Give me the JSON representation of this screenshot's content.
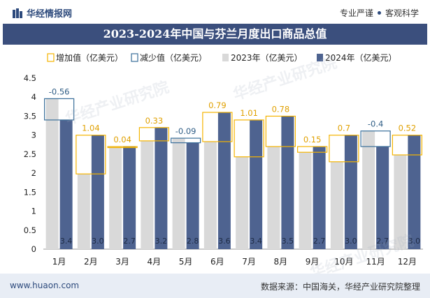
{
  "header": {
    "brand": "华经情报网",
    "slogan_left": "专业严谨",
    "slogan_right": "客观科学"
  },
  "footer": {
    "url": "www.huaon.com",
    "source": "数据来源：中国海关，华经产业研究院整理"
  },
  "watermarks": [
    "华经产业研究院",
    "华经产业研究院",
    "华经产业研究院"
  ],
  "colors": {
    "bar2023": "#d9d9d9",
    "bar2024": "#4e6390",
    "increase": "#f5b400",
    "decrease": "#3a6f9a",
    "header_bg": "#3b4f7d"
  },
  "chart_data": {
    "type": "bar",
    "title": "2023-2024年中国与芬兰月度出口商品总值",
    "categories": [
      "1月",
      "2月",
      "3月",
      "4月",
      "5月",
      "6月",
      "7月",
      "8月",
      "9月",
      "10月",
      "11月",
      "12月"
    ],
    "series": [
      {
        "name": "2023年（亿美元）",
        "values": [
          3.96,
          1.98,
          2.7,
          2.85,
          2.92,
          2.83,
          2.43,
          2.7,
          2.55,
          2.3,
          3.11,
          2.48
        ]
      },
      {
        "name": "2024年（亿美元）",
        "values": [
          3.4,
          3.0,
          2.7,
          3.2,
          2.8,
          3.6,
          3.4,
          3.5,
          2.7,
          3.0,
          2.7,
          3.0
        ]
      }
    ],
    "changes": [
      -0.56,
      1.04,
      0.04,
      0.33,
      -0.09,
      0.79,
      1.01,
      0.78,
      0.15,
      0.7,
      -0.4,
      0.52
    ],
    "change_legend": {
      "increase": "增加值（亿美元）",
      "decrease": "减少值（亿美元）"
    },
    "ylim": [
      0,
      4.5
    ],
    "yticks": [
      "0",
      "0.5",
      "1",
      "1.5",
      "2",
      "2.5",
      "3",
      "3.5",
      "4",
      "4.5"
    ],
    "xlabel": "",
    "ylabel": "",
    "grid": false,
    "legend_position": "top"
  }
}
